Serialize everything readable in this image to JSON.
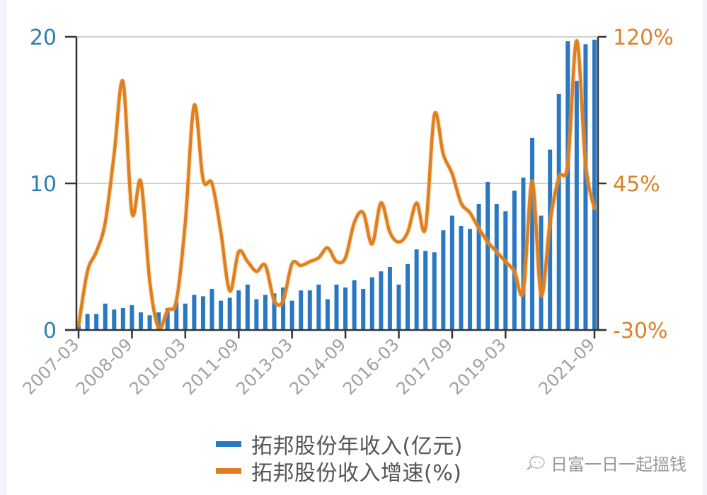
{
  "chart_data": {
    "type": "bar+line",
    "title": "",
    "xlabel": "",
    "ylabel_left": "拓邦股份年收入(亿元)",
    "ylabel_right": "拓邦股份收入增速(%)",
    "left_axis": {
      "min": 0,
      "max": 20,
      "ticks": [
        "0",
        "10",
        "20"
      ],
      "color": "#2e7fb0"
    },
    "right_axis": {
      "min": -30,
      "max": 120,
      "ticks": [
        "-30%",
        "45%",
        "120%"
      ],
      "color": "#d9822b"
    },
    "x_tick_labels": [
      "2007-03",
      "2008-09",
      "2010-03",
      "2011-09",
      "2013-03",
      "2014-09",
      "2016-03",
      "2017-09",
      "2019-03",
      "2021-09"
    ],
    "grid": "horizontal at 10 and 20",
    "legend_position": "bottom",
    "categories": [
      "2007-03",
      "2007-06",
      "2007-09",
      "2007-12",
      "2008-03",
      "2008-06",
      "2008-09",
      "2008-12",
      "2009-03",
      "2009-06",
      "2009-09",
      "2009-12",
      "2010-03",
      "2010-06",
      "2010-09",
      "2010-12",
      "2011-03",
      "2011-06",
      "2011-09",
      "2011-12",
      "2012-03",
      "2012-06",
      "2012-09",
      "2012-12",
      "2013-03",
      "2013-06",
      "2013-09",
      "2013-12",
      "2014-03",
      "2014-06",
      "2014-09",
      "2014-12",
      "2015-03",
      "2015-06",
      "2015-09",
      "2015-12",
      "2016-03",
      "2016-06",
      "2016-09",
      "2016-12",
      "2017-03",
      "2017-06",
      "2017-09",
      "2017-12",
      "2018-03",
      "2018-06",
      "2018-09",
      "2018-12",
      "2019-03",
      "2019-06",
      "2019-09",
      "2019-12",
      "2020-03",
      "2020-06",
      "2020-09",
      "2020-12",
      "2021-03",
      "2021-06",
      "2021-09"
    ],
    "series": [
      {
        "name": "拓邦股份年收入(亿元)",
        "type": "bar",
        "color": "#2b78c2",
        "axis": "left",
        "values": [
          0.3,
          1.1,
          1.1,
          1.8,
          1.4,
          1.5,
          1.7,
          1.2,
          1.0,
          1.2,
          1.5,
          1.9,
          1.8,
          2.4,
          2.3,
          2.8,
          2.0,
          2.2,
          2.7,
          3.1,
          2.1,
          2.4,
          2.5,
          2.9,
          2.0,
          2.7,
          2.7,
          3.1,
          2.1,
          3.1,
          2.9,
          3.4,
          2.8,
          3.6,
          4.0,
          4.3,
          3.1,
          4.5,
          5.5,
          5.4,
          5.3,
          6.8,
          7.8,
          7.1,
          6.9,
          8.6,
          10.1,
          8.6,
          8.1,
          9.5,
          10.4,
          13.1,
          7.8,
          12.3,
          16.1,
          19.7,
          17.0,
          19.5,
          19.8
        ]
      },
      {
        "name": "拓邦股份收入增速(%)",
        "type": "line",
        "color": "#e07f1f",
        "axis": "right",
        "values": [
          -28,
          0,
          10,
          25,
          60,
          97,
          30,
          46,
          -5,
          -29,
          -20,
          -15,
          25,
          85,
          47,
          45,
          20,
          -10,
          10,
          5,
          0,
          3,
          -15,
          -15,
          4,
          3,
          5,
          7,
          12,
          5,
          7,
          25,
          30,
          14,
          35,
          20,
          15,
          20,
          35,
          22,
          80,
          60,
          50,
          35,
          30,
          22,
          15,
          10,
          5,
          0,
          -10,
          46,
          -12,
          25,
          48,
          55,
          118,
          55,
          32
        ]
      }
    ]
  },
  "axes": {
    "left_ticks": [
      "20",
      "10",
      "0"
    ],
    "right_ticks": [
      "120%",
      "45%",
      "-30%"
    ],
    "x_ticks": [
      "2007-03",
      "2008-09",
      "2010-03",
      "2011-09",
      "2013-03",
      "2014-09",
      "2016-03",
      "2017-09",
      "2019-03",
      "2021-09"
    ]
  },
  "legend": {
    "items": [
      {
        "label": "拓邦股份年收入(亿元)",
        "color": "#2b78c2"
      },
      {
        "label": "拓邦股份收入增速(%)",
        "color": "#e07f1f"
      }
    ]
  },
  "watermark": {
    "text": "日富一日一起搵钱",
    "icon": "wechat-bubble-icon"
  }
}
